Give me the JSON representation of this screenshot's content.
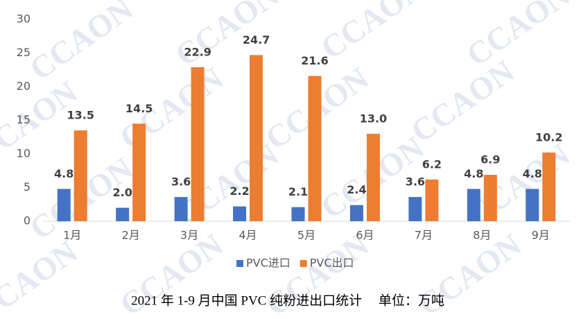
{
  "chart_data": {
    "type": "bar",
    "title": "2021 年 1-9 月中国 PVC 纯粉进出口统计     单位：万吨",
    "watermark": "CCAON",
    "categories": [
      "1月",
      "2月",
      "3月",
      "4月",
      "5月",
      "6月",
      "7月",
      "8月",
      "9月"
    ],
    "series": [
      {
        "name": "PVC进口",
        "color": "#4472c4",
        "values": [
          4.8,
          2.0,
          3.6,
          2.2,
          2.1,
          2.4,
          3.6,
          4.8,
          4.8
        ],
        "value_labels": [
          "4.8",
          "2.0",
          "3.6",
          "2.2",
          "2.1",
          "2.4",
          "3.6",
          "4.8",
          "4.8"
        ]
      },
      {
        "name": "PVC出口",
        "color": "#ed7d31",
        "values": [
          13.5,
          14.5,
          22.9,
          24.7,
          21.6,
          13.0,
          6.2,
          6.9,
          10.2
        ],
        "value_labels": [
          "13.5",
          "14.5",
          "22.9",
          "24.7",
          "21.6",
          "13.0",
          "6.2",
          "6.9",
          "10.2"
        ]
      }
    ],
    "ylim": [
      0,
      30
    ],
    "yticks": [
      0,
      5,
      10,
      15,
      20,
      25,
      30
    ],
    "grid": false,
    "legend": "bottom"
  }
}
